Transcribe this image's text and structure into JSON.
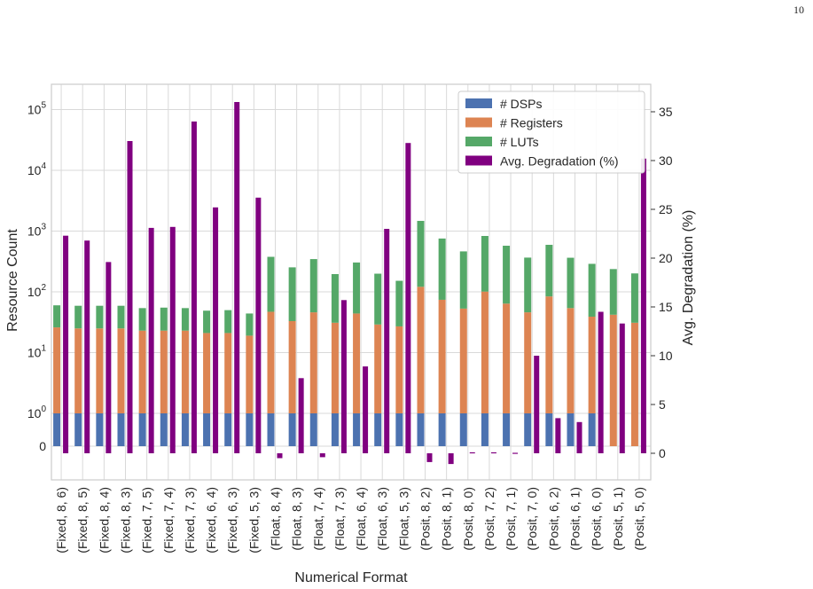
{
  "page_number": "10",
  "colors": {
    "dsps": "#4c72b0",
    "registers": "#dd8452",
    "luts": "#55a868",
    "degradation": "#800080",
    "grid": "#d9d9d9",
    "frame": "#cccccc"
  },
  "chart_data": {
    "type": "bar",
    "title": "",
    "xlabel": "Numerical Format",
    "ylabel": "Resource Count",
    "y2label": "Avg. Degradation (%)",
    "y_scale": "symlog",
    "y_tick_labels": [
      "0",
      "10^0",
      "10^1",
      "10^2",
      "10^3",
      "10^4",
      "10^5"
    ],
    "y2lim": [
      -3,
      38
    ],
    "y2_ticks": [
      0,
      5,
      10,
      15,
      20,
      25,
      30,
      35
    ],
    "grid": true,
    "legend_position": "top-right",
    "categories": [
      "(Fixed, 8, 6)",
      "(Fixed, 8, 5)",
      "(Fixed, 8, 4)",
      "(Fixed, 8, 3)",
      "(Fixed, 7, 5)",
      "(Fixed, 7, 4)",
      "(Fixed, 7, 3)",
      "(Fixed, 6, 4)",
      "(Fixed, 6, 3)",
      "(Fixed, 5, 3)",
      "(Float, 8, 4)",
      "(Float, 8, 3)",
      "(Float, 7, 4)",
      "(Float, 7, 3)",
      "(Float, 6, 4)",
      "(Float, 6, 3)",
      "(Float, 5, 3)",
      "(Posit, 8, 2)",
      "(Posit, 8, 1)",
      "(Posit, 8, 0)",
      "(Posit, 7, 2)",
      "(Posit, 7, 1)",
      "(Posit, 7, 0)",
      "(Posit, 6, 2)",
      "(Posit, 6, 1)",
      "(Posit, 6, 0)",
      "(Posit, 5, 1)",
      "(Posit, 5, 0)"
    ],
    "stack_series": [
      {
        "name": "# DSPs",
        "values": [
          1,
          1,
          1,
          1,
          1,
          1,
          1,
          1,
          1,
          1,
          1,
          1,
          1,
          1,
          1,
          1,
          1,
          1,
          1,
          1,
          1,
          1,
          1,
          1,
          1,
          1,
          0,
          0
        ]
      },
      {
        "name": "# Registers",
        "values": [
          25,
          24,
          24,
          24,
          22,
          22,
          22,
          20,
          20,
          18,
          46,
          32,
          45,
          30,
          43,
          28,
          26,
          120,
          73,
          52,
          100,
          63,
          45,
          83,
          53,
          38,
          42,
          31
        ]
      },
      {
        "name": "# LUTs",
        "values": [
          34,
          34,
          34,
          34,
          31,
          32,
          31,
          28,
          29,
          25,
          330,
          220,
          300,
          165,
          260,
          170,
          125,
          1350,
          680,
          410,
          730,
          510,
          320,
          510,
          310,
          250,
          195,
          170
        ]
      }
    ],
    "line_series": {
      "name": "Avg. Degradation (%)",
      "values": [
        22.3,
        21.8,
        19.6,
        32,
        23.1,
        23.2,
        34,
        25.2,
        36,
        26.2,
        -0.5,
        7.7,
        -0.4,
        15.7,
        8.9,
        23,
        31.8,
        -0.9,
        -1.1,
        0.1,
        0.1,
        0.05,
        10,
        3.6,
        3.2,
        14.5,
        13.3,
        30.2
      ]
    }
  }
}
